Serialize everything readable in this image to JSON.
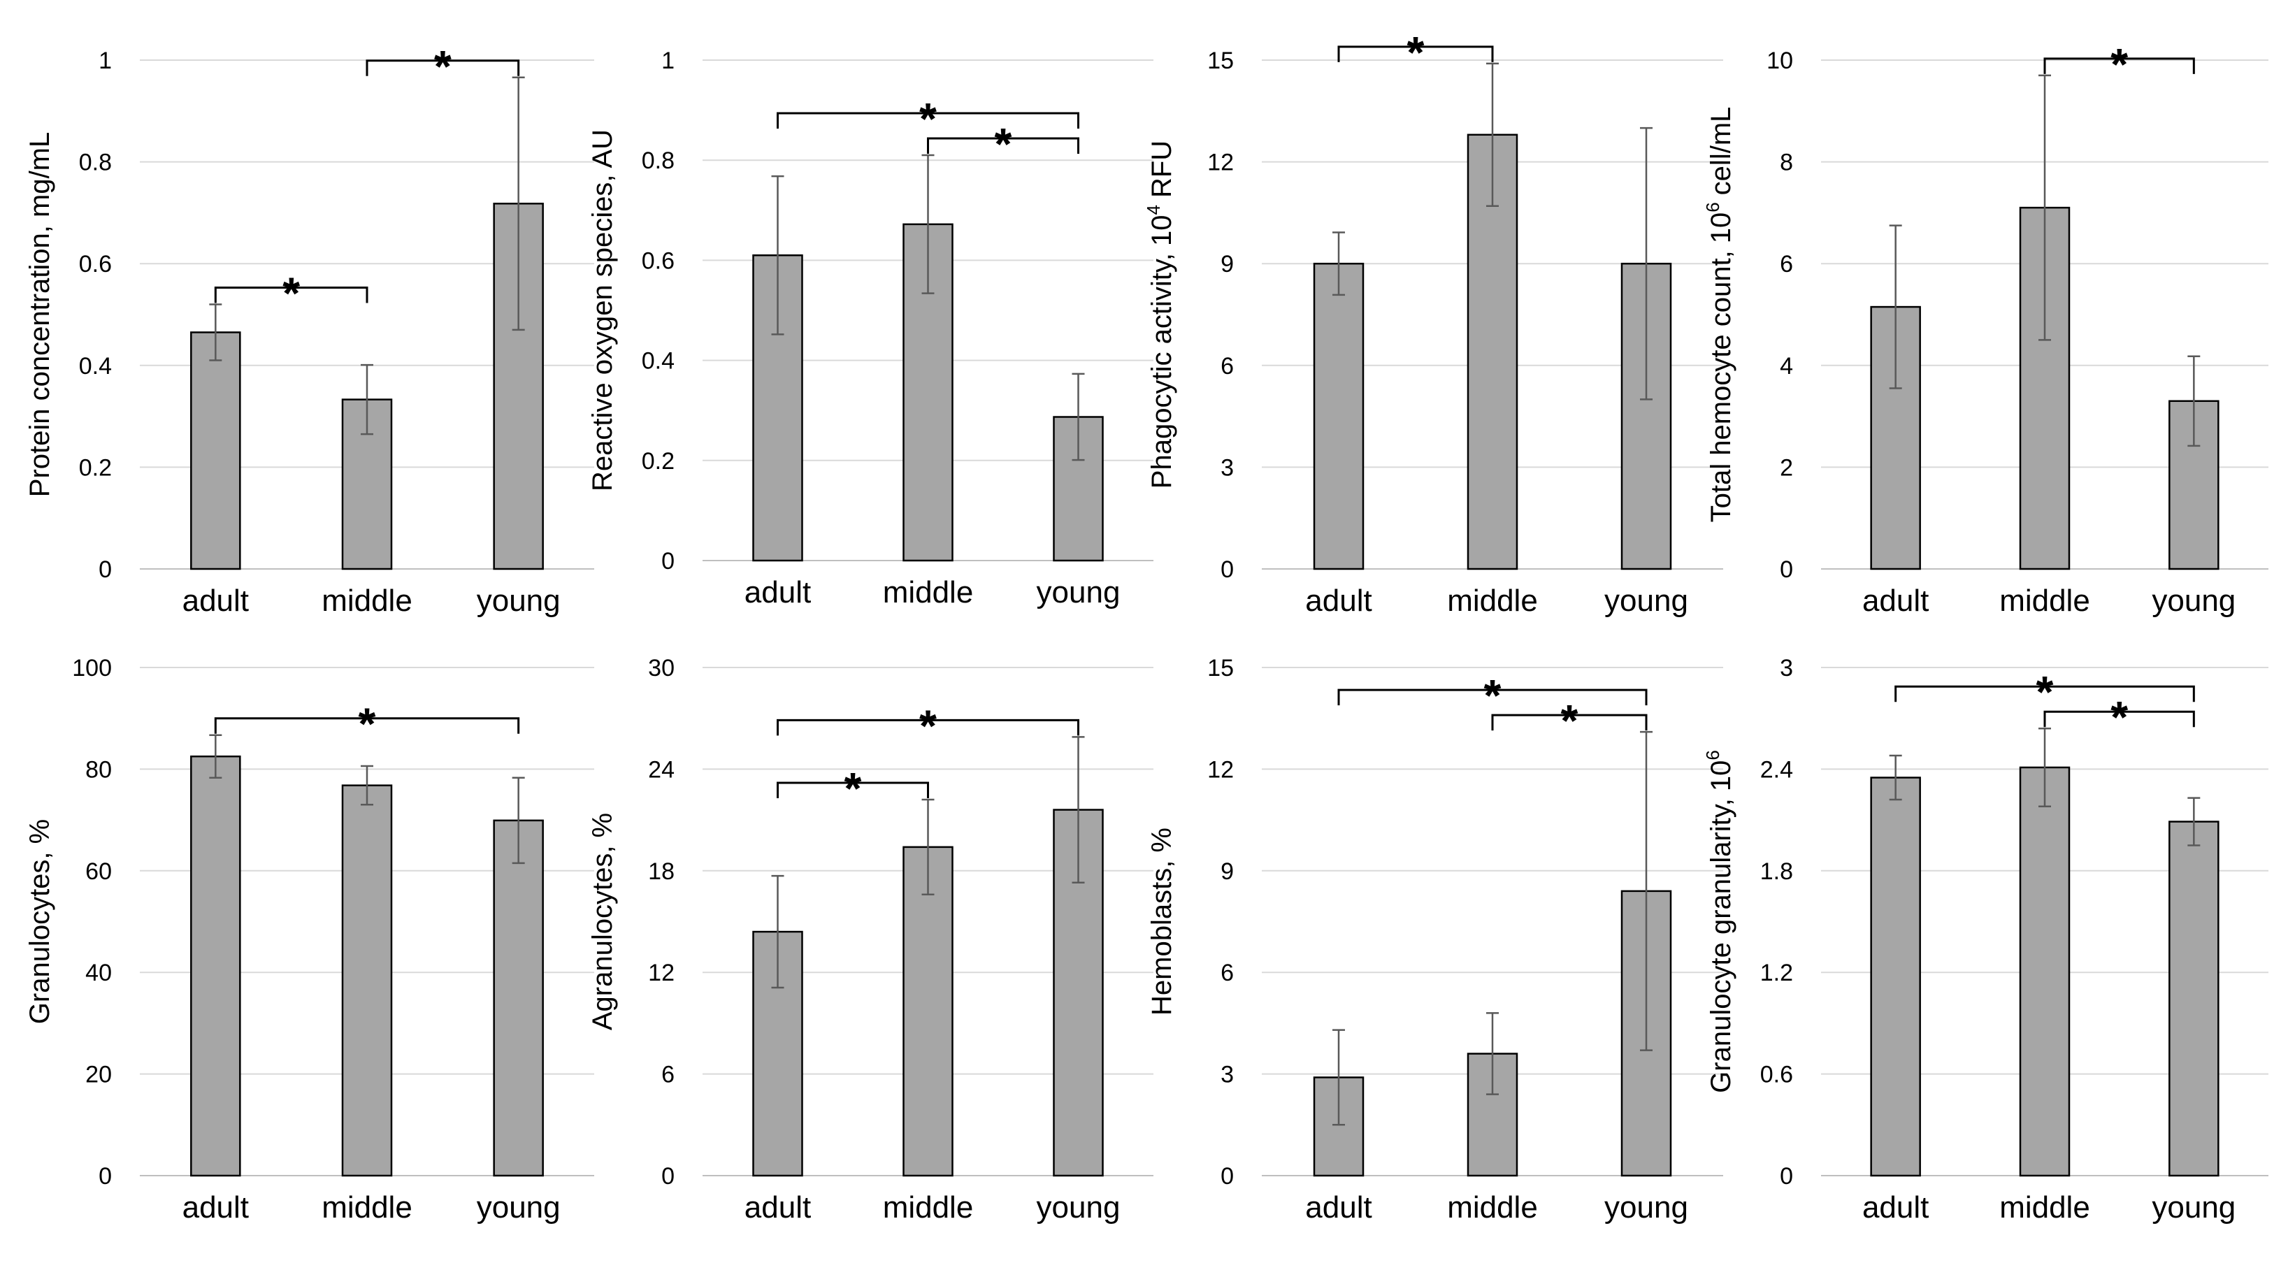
{
  "chart_data": [
    {
      "type": "bar",
      "categories": [
        "adult",
        "middle",
        "young"
      ],
      "values": [
        0.465,
        0.333,
        0.718
      ],
      "errors": [
        0.055,
        0.068,
        0.248
      ],
      "ylabel": "Protein concentration, mg/mL",
      "ylim": [
        0,
        1
      ],
      "yticks": [
        "0",
        "0.2",
        "0.4",
        "0.6",
        "0.8",
        "1"
      ],
      "grid": true,
      "significance": [
        {
          "from": 0,
          "to": 1,
          "label": "*"
        },
        {
          "from": 1,
          "to": 2,
          "label": "*"
        }
      ]
    },
    {
      "type": "bar",
      "categories": [
        "adult",
        "middle",
        "young"
      ],
      "values": [
        0.61,
        0.672,
        0.287
      ],
      "errors": [
        0.158,
        0.138,
        0.086
      ],
      "ylabel": "Reactive oxygen species, AU",
      "ylim": [
        0,
        1
      ],
      "yticks": [
        "0",
        "0.2",
        "0.4",
        "0.6",
        "0.8",
        "1"
      ],
      "grid": true,
      "significance": [
        {
          "from": 0,
          "to": 2,
          "label": "*"
        },
        {
          "from": 1,
          "to": 2,
          "label": "*"
        }
      ]
    },
    {
      "type": "bar",
      "categories": [
        "adult",
        "middle",
        "young"
      ],
      "values": [
        9.0,
        12.8,
        9.0
      ],
      "errors": [
        0.92,
        2.1,
        4.0
      ],
      "ylabel": "Phagocytic activity,",
      "ylabel_unit": "10",
      "ylabel_sup": "4",
      "ylabel_suffix": "RFU",
      "ylim": [
        0,
        15
      ],
      "yticks": [
        "0",
        "3",
        "6",
        "9",
        "12",
        "15"
      ],
      "grid": true,
      "significance": [
        {
          "from": 0,
          "to": 1,
          "label": "*"
        }
      ]
    },
    {
      "type": "bar",
      "categories": [
        "adult",
        "middle",
        "young"
      ],
      "values": [
        5.15,
        7.1,
        3.3
      ],
      "errors": [
        1.6,
        2.6,
        0.88
      ],
      "ylabel": "Total hemocyte count,",
      "ylabel_unit": "10",
      "ylabel_sup": "6",
      "ylabel_suffix": "cell/mL",
      "ylim": [
        0,
        10
      ],
      "yticks": [
        "0",
        "2",
        "4",
        "6",
        "8",
        "10"
      ],
      "grid": true,
      "significance": [
        {
          "from": 1,
          "to": 2,
          "label": "*"
        }
      ]
    },
    {
      "type": "bar",
      "categories": [
        "adult",
        "middle",
        "young"
      ],
      "values": [
        82.5,
        76.8,
        69.9
      ],
      "errors": [
        4.2,
        3.8,
        8.4
      ],
      "ylabel": "Granulocytes, %",
      "ylim": [
        0,
        100
      ],
      "yticks": [
        "0",
        "20",
        "40",
        "60",
        "80",
        "100"
      ],
      "grid": true,
      "significance": [
        {
          "from": 0,
          "to": 2,
          "label": "*"
        }
      ]
    },
    {
      "type": "bar",
      "categories": [
        "adult",
        "middle",
        "young"
      ],
      "values": [
        14.4,
        19.4,
        21.6
      ],
      "errors": [
        3.3,
        2.8,
        4.3
      ],
      "ylabel": "Agranulocytes, %",
      "ylim": [
        0,
        30
      ],
      "yticks": [
        "0",
        "6",
        "12",
        "18",
        "24",
        "30"
      ],
      "grid": true,
      "significance": [
        {
          "from": 0,
          "to": 1,
          "label": "*"
        },
        {
          "from": 0,
          "to": 2,
          "label": "*"
        }
      ]
    },
    {
      "type": "bar",
      "categories": [
        "adult",
        "middle",
        "young"
      ],
      "values": [
        2.9,
        3.6,
        8.4
      ],
      "errors": [
        1.4,
        1.2,
        4.7
      ],
      "ylabel": "Hemoblasts, %",
      "ylim": [
        0,
        15
      ],
      "yticks": [
        "0",
        "3",
        "6",
        "9",
        "12",
        "15"
      ],
      "grid": true,
      "significance": [
        {
          "from": 0,
          "to": 2,
          "label": "*"
        },
        {
          "from": 1,
          "to": 2,
          "label": "*"
        }
      ]
    },
    {
      "type": "bar",
      "categories": [
        "adult",
        "middle",
        "young"
      ],
      "values": [
        2.35,
        2.41,
        2.09
      ],
      "errors": [
        0.13,
        0.23,
        0.14
      ],
      "ylabel": "Granulocyte granularity,",
      "ylabel_unit": "10",
      "ylabel_sup": "6",
      "ylabel_suffix": "",
      "ylim": [
        0,
        3
      ],
      "yticks": [
        "0",
        "0.6",
        "1.2",
        "1.8",
        "2.4",
        "3"
      ],
      "grid": true,
      "significance": [
        {
          "from": 0,
          "to": 2,
          "label": "*"
        },
        {
          "from": 1,
          "to": 2,
          "label": "*"
        }
      ]
    }
  ],
  "colors": {
    "bar_fill": "#a6a6a6",
    "bar_edge": "#000000",
    "error_bar": "#595959",
    "grid": "#d9d9d9"
  }
}
